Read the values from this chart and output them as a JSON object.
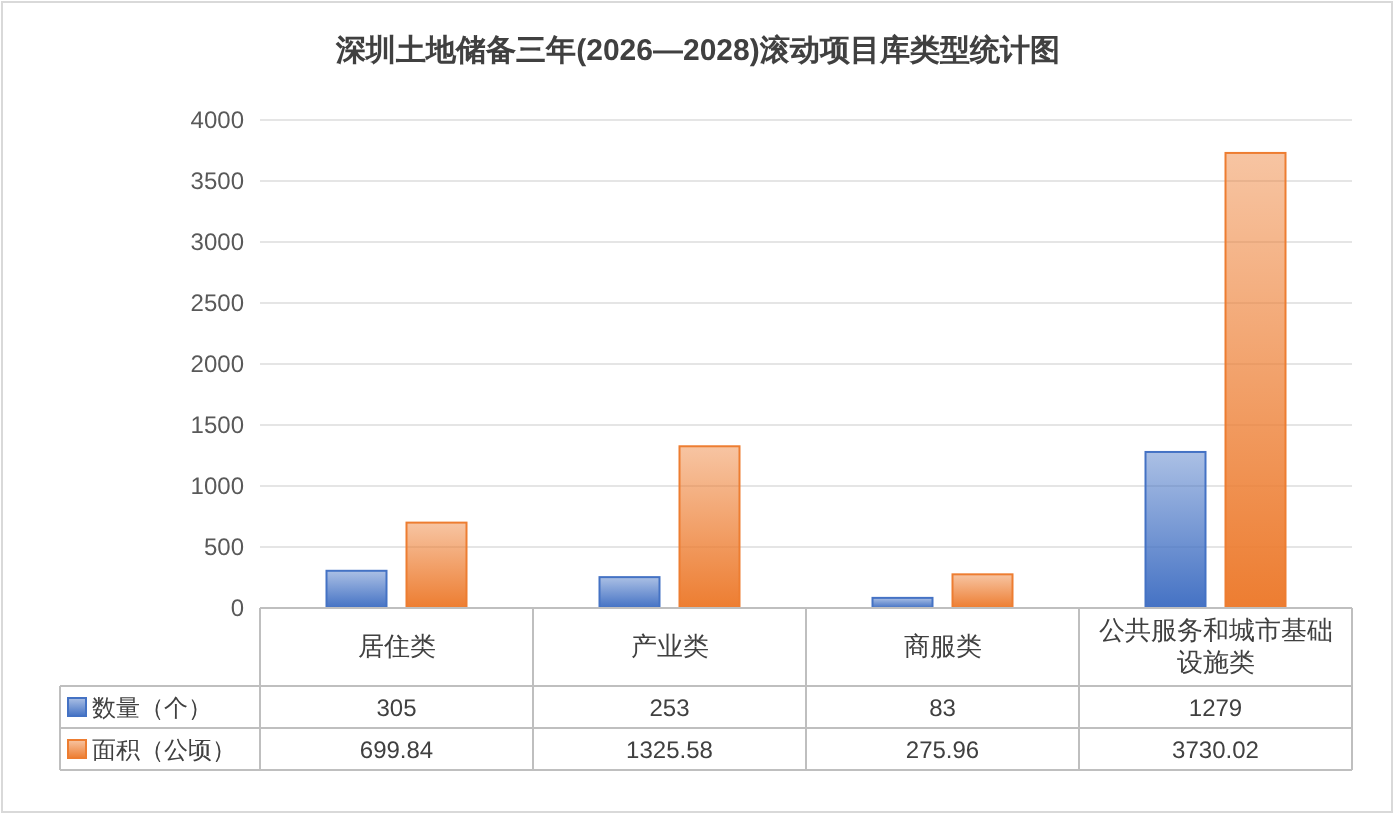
{
  "chart_data": {
    "type": "bar",
    "title": "深圳土地储备三年(2026—2028)滚动项目库类型统计图",
    "categories": [
      "居住类",
      "产业类",
      "商服类",
      "公共服务和城市基础设施类"
    ],
    "series": [
      {
        "name": "数量（个）",
        "color": "#4472c4",
        "values": [
          305,
          253,
          83,
          1279
        ]
      },
      {
        "name": "面积（公顷）",
        "color": "#ed7d31",
        "values": [
          699.84,
          1325.58,
          275.96,
          3730.02
        ]
      }
    ],
    "ylim": [
      0,
      4000
    ],
    "yticks": [
      0,
      500,
      1000,
      1500,
      2000,
      2500,
      3000,
      3500,
      4000
    ],
    "grid": "y",
    "legend": "bottom",
    "data_labels": true
  }
}
